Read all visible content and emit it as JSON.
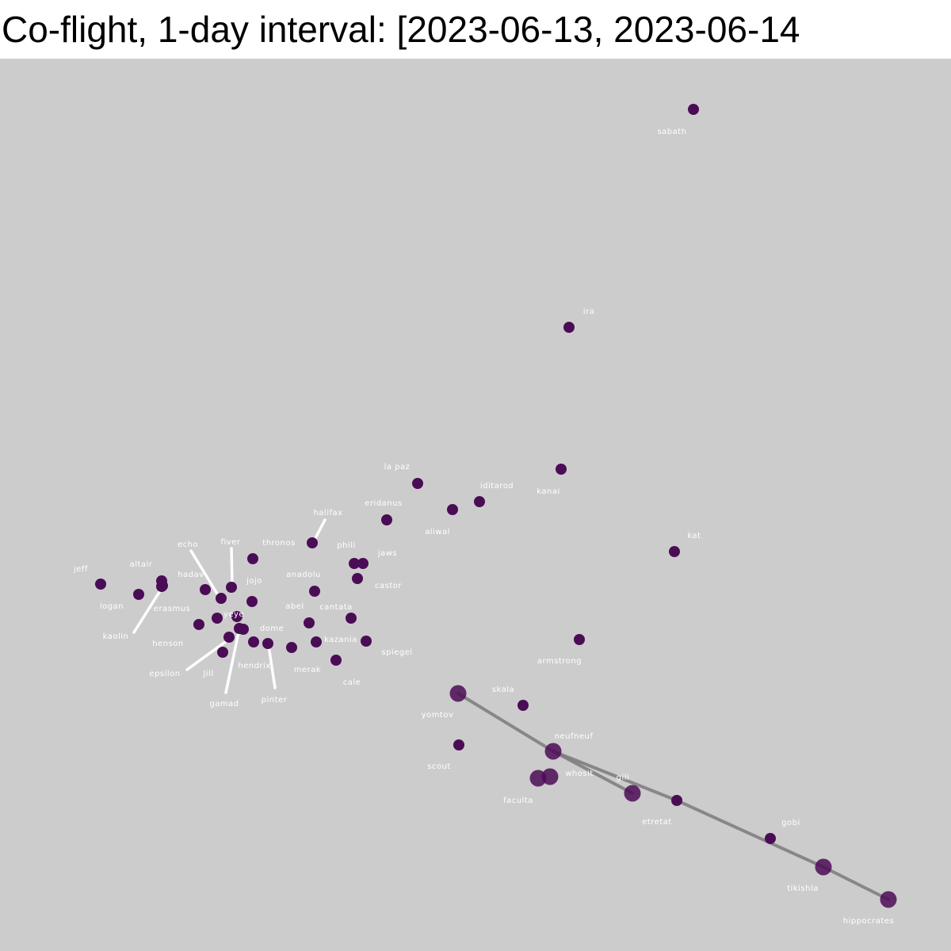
{
  "title": "Co-flight, 1-day interval: [2023-06-13, 2023-06-14",
  "colors": {
    "background": "#cccccc",
    "node_fill": "#4b0c56",
    "edge": "#7a7a7a",
    "label_text": "#ffffff",
    "leader_line": "#ffffff"
  },
  "nodes": [
    {
      "id": "sabath",
      "size": "small"
    },
    {
      "id": "ira",
      "size": "small"
    },
    {
      "id": "la paz",
      "size": "small"
    },
    {
      "id": "iditarod",
      "size": "small"
    },
    {
      "id": "kanai",
      "size": "small"
    },
    {
      "id": "aliwal",
      "size": "small"
    },
    {
      "id": "eridanus",
      "size": "small"
    },
    {
      "id": "halifax",
      "size": "small"
    },
    {
      "id": "thronos",
      "size": "small"
    },
    {
      "id": "phili",
      "size": "small"
    },
    {
      "id": "jaws",
      "size": "small"
    },
    {
      "id": "castor",
      "size": "small"
    },
    {
      "id": "kat",
      "size": "small"
    },
    {
      "id": "jeff",
      "size": "small"
    },
    {
      "id": "logan",
      "size": "small"
    },
    {
      "id": "altair",
      "size": "small"
    },
    {
      "id": "erasmus",
      "size": "small"
    },
    {
      "id": "kaolin",
      "size": "small"
    },
    {
      "id": "hadav",
      "size": "small"
    },
    {
      "id": "echo",
      "size": "small"
    },
    {
      "id": "fiver",
      "size": "small"
    },
    {
      "id": "jojo",
      "size": "small"
    },
    {
      "id": "yeye",
      "size": "small"
    },
    {
      "id": "anadolu",
      "size": "small"
    },
    {
      "id": "abel",
      "size": "small"
    },
    {
      "id": "cantata",
      "size": "small"
    },
    {
      "id": "henson",
      "size": "small"
    },
    {
      "id": "dome",
      "size": "small"
    },
    {
      "id": "kazania",
      "size": "small"
    },
    {
      "id": "spiegel",
      "size": "small"
    },
    {
      "id": "epsilon",
      "size": "small"
    },
    {
      "id": "Jill",
      "size": "small"
    },
    {
      "id": "hendrix",
      "size": "small"
    },
    {
      "id": "merak",
      "size": "small"
    },
    {
      "id": "cale",
      "size": "small"
    },
    {
      "id": "gamad",
      "size": "small"
    },
    {
      "id": "pinter",
      "size": "small"
    },
    {
      "id": "armstrong",
      "size": "small"
    },
    {
      "id": "skala",
      "size": "small"
    },
    {
      "id": "yomtov",
      "size": "large"
    },
    {
      "id": "scout",
      "size": "small"
    },
    {
      "id": "neufneuf",
      "size": "large"
    },
    {
      "id": "whosit",
      "size": "large"
    },
    {
      "id": "faculta",
      "size": "large"
    },
    {
      "id": "gili",
      "size": "small"
    },
    {
      "id": "etretat",
      "size": "large"
    },
    {
      "id": "gobi",
      "size": "small"
    },
    {
      "id": "tikishla",
      "size": "large"
    },
    {
      "id": "hippocrates",
      "size": "large"
    }
  ],
  "edges": [
    {
      "source": "yomtov",
      "target": "neufneuf"
    },
    {
      "source": "neufneuf",
      "target": "etretat"
    },
    {
      "source": "neufneuf",
      "target": "gili"
    },
    {
      "source": "gili",
      "target": "tikishla"
    },
    {
      "source": "tikishla",
      "target": "hippocrates"
    }
  ]
}
